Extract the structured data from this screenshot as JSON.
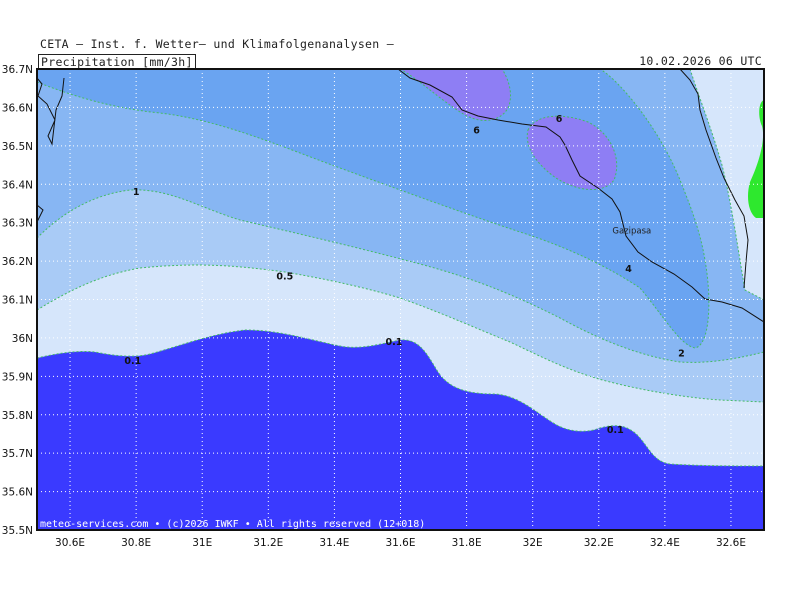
{
  "header": {
    "institute": "CETA – Inst. f. Wetter– und Klimafolgenanalysen –",
    "parameter": "Precipitation_[mm/3h]",
    "valid_time": "10.02.2026 06 UTC"
  },
  "map": {
    "lon_range": [
      30.5,
      32.7
    ],
    "lat_range": [
      35.5,
      36.7
    ],
    "lon_ticks": [
      "30.6E",
      "30.8E",
      "31E",
      "31.2E",
      "31.4E",
      "31.6E",
      "31.8E",
      "32E",
      "32.2E",
      "32.4E",
      "32.6E"
    ],
    "lat_ticks": [
      "36.7N",
      "36.6N",
      "36.5N",
      "36.4N",
      "36.3N",
      "36.2N",
      "36.1N",
      "36N",
      "35.9N",
      "35.8N",
      "35.7N",
      "35.6N",
      "35.5N"
    ],
    "contour_labels": [
      {
        "text": "6",
        "lon": 31.83,
        "lat": 36.54
      },
      {
        "text": "6",
        "lon": 32.08,
        "lat": 36.57
      },
      {
        "text": "1",
        "lon": 30.8,
        "lat": 36.38
      },
      {
        "text": "0.5",
        "lon": 31.25,
        "lat": 36.16
      },
      {
        "text": "4",
        "lon": 32.29,
        "lat": 36.18
      },
      {
        "text": "2",
        "lon": 32.45,
        "lat": 35.96
      },
      {
        "text": "0.1",
        "lon": 30.79,
        "lat": 35.94
      },
      {
        "text": "0.1",
        "lon": 31.58,
        "lat": 35.99
      },
      {
        "text": "0.1",
        "lon": 32.25,
        "lat": 35.76
      }
    ],
    "place": {
      "name": "Gazipasa",
      "lon": 32.3,
      "lat": 36.28
    },
    "colors": {
      "band_0_1": "#3a3aff",
      "band_0_1_0_5": "#d6e6fb",
      "band_0_5_1": "#a9cbf6",
      "band_1_2": "#87b6f3",
      "band_2_6": "#6aa4f1",
      "band_6_plus": "#8e7ef4",
      "land_green": "#2ee82e",
      "contour_line": "#44bb66"
    },
    "credit": "meteo-services.com • (c)2026 IWKF • All rights reserved (12+018)"
  }
}
